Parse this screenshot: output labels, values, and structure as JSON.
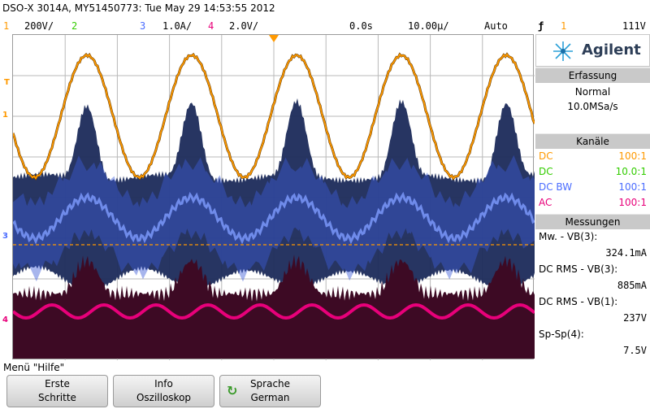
{
  "title": "DSO-X 3014A, MY51450773: Tue May 29 14:53:55 2012",
  "status": {
    "ch1_num": "1",
    "ch1_scale": "200V/",
    "ch2_num": "2",
    "ch3_num": "3",
    "ch3_scale": "1.0A/",
    "ch4_num": "4",
    "ch4_scale": "2.0V/",
    "time_pos": "0.0s",
    "time_scale": "10.00µ/",
    "trigger_mode": "Auto",
    "trigger_icon": "ƒ",
    "trigger_channel": "1",
    "trigger_level": "111V"
  },
  "markers": {
    "trigger": "T",
    "ch1": "1",
    "ch3": "3",
    "ch4": "4"
  },
  "panel": {
    "brand": "Agilent",
    "acq_header": "Erfassung",
    "acq_mode": "Normal",
    "acq_rate": "10.0MSa/s",
    "chan_header": "Kanäle",
    "channels": [
      {
        "coupling": "DC",
        "probe": "100:1",
        "color": "#ff9900"
      },
      {
        "coupling": "DC",
        "probe": "10.0:1",
        "color": "#33cc00"
      },
      {
        "coupling": "DC BW",
        "probe": "100:1",
        "color": "#4a6cff"
      },
      {
        "coupling": "AC",
        "probe": "100:1",
        "color": "#e8007a"
      }
    ],
    "meas_header": "Messungen",
    "measurements": [
      {
        "label": "Mw. - VB(3):",
        "value": "324.1mA"
      },
      {
        "label": "DC RMS - VB(3):",
        "value": "885mA"
      },
      {
        "label": "DC RMS - VB(1):",
        "value": "237V"
      },
      {
        "label": "Sp-Sp(4):",
        "value": "7.5V"
      }
    ]
  },
  "menu": {
    "title": "Menü \"Hilfe\"",
    "softkeys": [
      {
        "line1": "Erste",
        "line2": "Schritte"
      },
      {
        "line1": "Info",
        "line2": "Oszilloskop"
      },
      {
        "line1": "Sprache",
        "line2": "German"
      }
    ]
  },
  "colors": {
    "ch1": "#ff9900",
    "ch2": "#33cc00",
    "ch3": "#4a6cff",
    "ch4": "#e8007a",
    "ch3_dark": "#1b2a5a",
    "ch4_dark": "#3d0a24"
  },
  "icons": {
    "logo": "agilent-spark-icon",
    "language": "refresh-icon",
    "trigger": "trigger-edge-icon"
  }
}
